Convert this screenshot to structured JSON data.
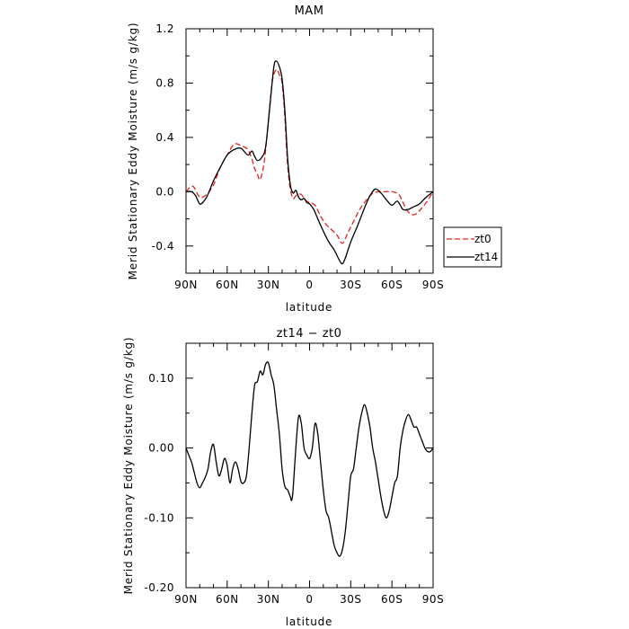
{
  "chart_data": [
    {
      "type": "line",
      "title": "MAM",
      "xlabel": "latitude",
      "ylabel": "Merid Stationary Eddy Moisture (m/s g/kg)",
      "xlim": [
        90,
        -90
      ],
      "ylim": [
        -0.6,
        1.2
      ],
      "x_ticks": [
        90,
        60,
        30,
        0,
        -30,
        -60,
        -90
      ],
      "x_tick_labels": [
        "90N",
        "60N",
        "30N",
        "0",
        "30S",
        "60S",
        "90S"
      ],
      "y_ticks": [
        -0.4,
        0.0,
        0.4,
        0.8,
        1.2
      ],
      "y_tick_labels": [
        "-0.4",
        "0.0",
        "0.4",
        "0.8",
        "1.2"
      ],
      "legend": {
        "placement": "right"
      },
      "series": [
        {
          "name": "zt0",
          "color": "#e8211c",
          "dash": "dashed",
          "x": [
            90,
            85,
            80,
            75,
            70,
            65,
            60,
            55,
            50,
            45,
            42,
            40,
            38,
            36,
            33,
            30,
            27,
            24,
            22,
            20,
            18,
            16,
            14,
            12,
            10,
            8,
            6,
            4,
            2,
            0,
            -4,
            -8,
            -12,
            -16,
            -20,
            -24,
            -28,
            -32,
            -36,
            -40,
            -45,
            -50,
            -55,
            -60,
            -65,
            -68,
            -72,
            -76,
            -80,
            -85,
            -90
          ],
          "y": [
            0.0,
            0.04,
            -0.04,
            -0.02,
            0.05,
            0.18,
            0.27,
            0.35,
            0.34,
            0.31,
            0.24,
            0.17,
            0.13,
            0.09,
            0.22,
            0.52,
            0.82,
            0.9,
            0.86,
            0.8,
            0.55,
            0.2,
            0.02,
            -0.05,
            -0.03,
            -0.02,
            -0.02,
            -0.05,
            -0.07,
            -0.08,
            -0.1,
            -0.18,
            -0.24,
            -0.28,
            -0.32,
            -0.38,
            -0.3,
            -0.22,
            -0.14,
            -0.08,
            -0.02,
            0.0,
            0.0,
            0.0,
            -0.02,
            -0.08,
            -0.15,
            -0.17,
            -0.14,
            -0.08,
            0.0
          ]
        },
        {
          "name": "zt14",
          "color": "#000000",
          "dash": "solid",
          "x": [
            90,
            86,
            83,
            80,
            77,
            74,
            70,
            65,
            60,
            55,
            50,
            45,
            42,
            40,
            38,
            35,
            32,
            29,
            26,
            24,
            22,
            20,
            18,
            16,
            14,
            12,
            10,
            8,
            6,
            4,
            2,
            0,
            -3,
            -6,
            -10,
            -14,
            -18,
            -22,
            -24,
            -26,
            -30,
            -35,
            -40,
            -44,
            -48,
            -52,
            -56,
            -60,
            -64,
            -68,
            -72,
            -76,
            -80,
            -85,
            -90
          ],
          "y": [
            0.0,
            0.0,
            -0.03,
            -0.09,
            -0.07,
            -0.02,
            0.08,
            0.18,
            0.27,
            0.31,
            0.32,
            0.27,
            0.3,
            0.26,
            0.23,
            0.25,
            0.33,
            0.62,
            0.92,
            0.96,
            0.92,
            0.83,
            0.6,
            0.25,
            0.05,
            -0.01,
            0.01,
            -0.04,
            -0.06,
            -0.05,
            -0.08,
            -0.09,
            -0.13,
            -0.2,
            -0.29,
            -0.37,
            -0.43,
            -0.51,
            -0.53,
            -0.49,
            -0.37,
            -0.25,
            -0.12,
            -0.03,
            0.02,
            -0.01,
            -0.06,
            -0.1,
            -0.07,
            -0.13,
            -0.13,
            -0.11,
            -0.09,
            -0.04,
            0.0
          ]
        }
      ]
    },
    {
      "type": "line",
      "title": "zt14 − zt0",
      "xlabel": "latitude",
      "ylabel": "Merid Stationary Eddy Moisture (m/s g/kg)",
      "xlim": [
        90,
        -90
      ],
      "ylim": [
        -0.2,
        0.15
      ],
      "x_ticks": [
        90,
        60,
        30,
        0,
        -30,
        -60,
        -90
      ],
      "x_tick_labels": [
        "90N",
        "60N",
        "30N",
        "0",
        "30S",
        "60S",
        "90S"
      ],
      "y_ticks": [
        -0.2,
        -0.1,
        0.0,
        0.1
      ],
      "y_tick_labels": [
        "-0.20",
        "-0.10",
        "0.00",
        "0.10"
      ],
      "series": [
        {
          "color": "#000000",
          "dash": "solid",
          "x": [
            90,
            88,
            86,
            84,
            82,
            80,
            78,
            76,
            74,
            72,
            70,
            68,
            66,
            64,
            62,
            60,
            58,
            56,
            54,
            52,
            50,
            48,
            46,
            44,
            42,
            40,
            38,
            36,
            34,
            32,
            30,
            28,
            26,
            24,
            22,
            20,
            18,
            16,
            14,
            13,
            12,
            10,
            8,
            6,
            4,
            2,
            0,
            -2,
            -4,
            -6,
            -8,
            -10,
            -12,
            -14,
            -16,
            -18,
            -20,
            -22,
            -24,
            -26,
            -28,
            -30,
            -32,
            -34,
            -36,
            -38,
            -40,
            -42,
            -44,
            -46,
            -48,
            -50,
            -52,
            -54,
            -56,
            -58,
            -60,
            -62,
            -64,
            -66,
            -68,
            -70,
            -72,
            -74,
            -76,
            -78,
            -80,
            -82,
            -84,
            -86,
            -88,
            -90
          ],
          "y": [
            0.0,
            -0.01,
            -0.02,
            -0.035,
            -0.05,
            -0.057,
            -0.05,
            -0.042,
            -0.03,
            -0.005,
            0.005,
            -0.02,
            -0.04,
            -0.03,
            -0.015,
            -0.025,
            -0.05,
            -0.03,
            -0.02,
            -0.03,
            -0.048,
            -0.05,
            -0.04,
            0.0,
            0.05,
            0.09,
            0.095,
            0.11,
            0.105,
            0.12,
            0.122,
            0.105,
            0.09,
            0.055,
            0.02,
            -0.03,
            -0.055,
            -0.06,
            -0.07,
            -0.075,
            -0.06,
            0.0,
            0.045,
            0.035,
            0.0,
            -0.01,
            -0.015,
            0.0,
            0.035,
            0.02,
            -0.02,
            -0.06,
            -0.09,
            -0.1,
            -0.12,
            -0.14,
            -0.15,
            -0.155,
            -0.145,
            -0.12,
            -0.08,
            -0.04,
            -0.03,
            0.0,
            0.03,
            0.05,
            0.062,
            0.05,
            0.03,
            0.0,
            -0.02,
            -0.045,
            -0.07,
            -0.09,
            -0.1,
            -0.09,
            -0.07,
            -0.05,
            -0.04,
            0.0,
            0.025,
            0.04,
            0.048,
            0.04,
            0.03,
            0.03,
            0.02,
            0.01,
            0.0,
            -0.005,
            -0.005,
            0.0
          ]
        }
      ]
    }
  ]
}
